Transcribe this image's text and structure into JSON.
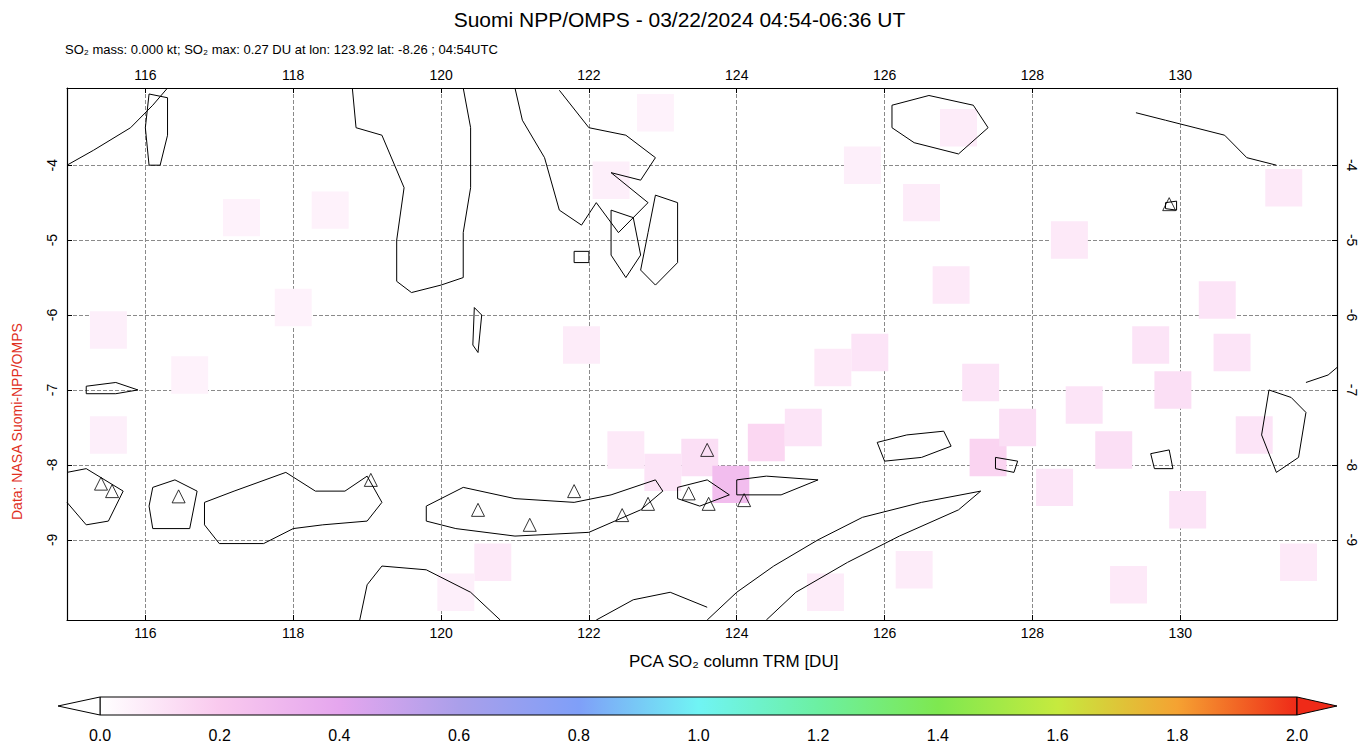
{
  "chart_data": {
    "type": "map",
    "title": "Suomi NPP/OMPS - 03/22/2024 04:54-06:36 UT",
    "subtitle": "SO₂ mass: 0.000 kt; SO₂ max: 0.27 DU at lon: 123.92 lat: -8.26 ; 04:54UTC",
    "source_label": "Data: NASA Suomi-NPP/OMPS",
    "xlim": [
      114.94,
      132.12
    ],
    "xticks": [
      116,
      118,
      120,
      122,
      124,
      126,
      128,
      130
    ],
    "ylim": [
      -10.07,
      -2.97
    ],
    "yticks": [
      -9,
      -8,
      -7,
      -6,
      -5,
      -4
    ],
    "grid": true,
    "colorbar": {
      "label": "PCA SO₂ column TRM [DU]",
      "range": [
        0,
        2
      ],
      "ticks": [
        {
          "value": 0,
          "label": "0.0"
        },
        0.2,
        0.4,
        0.6,
        0.8,
        {
          "value": 1,
          "label": "1.0"
        },
        1.2,
        1.4,
        1.6,
        1.8,
        {
          "value": 2,
          "label": "2.0"
        }
      ]
    },
    "so2_cells": {
      "cell_size": 0.5,
      "cells": [
        [
          115.5,
          -6.2,
          0.06
        ],
        [
          115.5,
          -7.6,
          0.06
        ],
        [
          116.6,
          -6.8,
          0.05
        ],
        [
          117.3,
          -4.7,
          0.05
        ],
        [
          118.0,
          -5.9,
          0.05
        ],
        [
          118.5,
          -4.6,
          0.05
        ],
        [
          121.9,
          -6.4,
          0.07
        ],
        [
          122.3,
          -4.2,
          0.06
        ],
        [
          122.9,
          -3.3,
          0.05
        ],
        [
          122.5,
          -7.8,
          0.08
        ],
        [
          123.0,
          -8.1,
          0.1
        ],
        [
          123.5,
          -7.9,
          0.12
        ],
        [
          123.92,
          -8.26,
          0.27
        ],
        [
          124.4,
          -7.7,
          0.15
        ],
        [
          124.9,
          -7.5,
          0.1
        ],
        [
          125.3,
          -6.7,
          0.08
        ],
        [
          125.8,
          -6.5,
          0.1
        ],
        [
          126.5,
          -4.5,
          0.07
        ],
        [
          126.9,
          -5.6,
          0.08
        ],
        [
          127.3,
          -6.9,
          0.1
        ],
        [
          127.4,
          -7.9,
          0.16
        ],
        [
          127.8,
          -7.5,
          0.12
        ],
        [
          128.3,
          -8.3,
          0.1
        ],
        [
          128.7,
          -7.2,
          0.1
        ],
        [
          129.1,
          -7.8,
          0.12
        ],
        [
          129.6,
          -6.4,
          0.1
        ],
        [
          129.9,
          -7.0,
          0.12
        ],
        [
          130.1,
          -8.6,
          0.1
        ],
        [
          130.5,
          -5.8,
          0.1
        ],
        [
          130.7,
          -6.5,
          0.1
        ],
        [
          131.0,
          -7.6,
          0.1
        ],
        [
          131.4,
          -4.3,
          0.08
        ],
        [
          131.6,
          -9.3,
          0.08
        ],
        [
          129.3,
          -9.6,
          0.08
        ],
        [
          126.4,
          -9.4,
          0.07
        ],
        [
          125.2,
          -9.7,
          0.07
        ],
        [
          120.7,
          -9.3,
          0.08
        ],
        [
          120.2,
          -9.7,
          0.06
        ],
        [
          128.5,
          -5.0,
          0.08
        ],
        [
          127.0,
          -3.5,
          0.07
        ],
        [
          125.7,
          -4.0,
          0.06
        ]
      ]
    },
    "volcanoes": {
      "marker": "triangle",
      "points": [
        [
          115.4,
          -8.25
        ],
        [
          115.55,
          -8.35
        ],
        [
          116.45,
          -8.42
        ],
        [
          119.05,
          -8.2
        ],
        [
          120.5,
          -8.6
        ],
        [
          121.2,
          -8.8
        ],
        [
          121.8,
          -8.35
        ],
        [
          122.45,
          -8.67
        ],
        [
          122.8,
          -8.52
        ],
        [
          123.35,
          -8.38
        ],
        [
          123.6,
          -7.8
        ],
        [
          123.62,
          -8.52
        ],
        [
          124.1,
          -8.47
        ],
        [
          129.85,
          -4.52
        ]
      ]
    },
    "coastlines": {
      "color": "#000000",
      "polygons": [
        [
          [
            114.94,
            -4.0
          ],
          [
            115.3,
            -3.8
          ],
          [
            115.8,
            -3.5
          ],
          [
            116.1,
            -3.2
          ],
          [
            116.3,
            -2.97
          ]
        ],
        [
          [
            116.05,
            -3.05
          ],
          [
            116.3,
            -3.1
          ],
          [
            116.3,
            -3.6
          ],
          [
            116.2,
            -4.0
          ],
          [
            116.05,
            -4.0
          ],
          [
            116.0,
            -3.5
          ],
          [
            116.05,
            -3.05
          ]
        ],
        [
          [
            118.8,
            -2.97
          ],
          [
            118.85,
            -3.5
          ],
          [
            119.2,
            -3.6
          ],
          [
            119.5,
            -4.3
          ],
          [
            119.4,
            -5.0
          ],
          [
            119.4,
            -5.55
          ],
          [
            119.6,
            -5.7
          ],
          [
            120.0,
            -5.6
          ],
          [
            120.3,
            -5.5
          ],
          [
            120.3,
            -4.9
          ],
          [
            120.4,
            -4.3
          ],
          [
            120.4,
            -3.5
          ],
          [
            120.3,
            -2.97
          ]
        ],
        [
          [
            120.45,
            -5.9
          ],
          [
            120.55,
            -6.0
          ],
          [
            120.5,
            -6.5
          ],
          [
            120.43,
            -6.4
          ],
          [
            120.45,
            -5.9
          ]
        ],
        [
          [
            121.0,
            -2.97
          ],
          [
            121.1,
            -3.4
          ],
          [
            121.4,
            -3.9
          ],
          [
            121.6,
            -4.6
          ],
          [
            121.9,
            -4.8
          ],
          [
            122.1,
            -4.5
          ],
          [
            122.4,
            -4.9
          ],
          [
            122.8,
            -4.5
          ],
          [
            122.3,
            -4.1
          ],
          [
            122.7,
            -4.2
          ],
          [
            122.9,
            -3.9
          ],
          [
            122.5,
            -3.6
          ],
          [
            122.0,
            -3.5
          ],
          [
            121.6,
            -3.0
          ]
        ],
        [
          [
            122.3,
            -4.6
          ],
          [
            122.6,
            -4.7
          ],
          [
            122.7,
            -5.2
          ],
          [
            122.5,
            -5.5
          ],
          [
            122.3,
            -5.2
          ],
          [
            122.3,
            -4.6
          ]
        ],
        [
          [
            122.9,
            -4.4
          ],
          [
            123.2,
            -4.5
          ],
          [
            123.2,
            -5.3
          ],
          [
            122.9,
            -5.6
          ],
          [
            122.7,
            -5.4
          ],
          [
            122.8,
            -4.9
          ],
          [
            122.9,
            -4.4
          ]
        ],
        [
          [
            121.8,
            -5.15
          ],
          [
            122.0,
            -5.15
          ],
          [
            122.0,
            -5.3
          ],
          [
            121.8,
            -5.3
          ],
          [
            121.8,
            -5.15
          ]
        ],
        [
          [
            126.1,
            -3.2
          ],
          [
            126.6,
            -3.07
          ],
          [
            127.2,
            -3.2
          ],
          [
            127.4,
            -3.5
          ],
          [
            127.0,
            -3.85
          ],
          [
            126.4,
            -3.7
          ],
          [
            126.1,
            -3.5
          ],
          [
            126.1,
            -3.2
          ]
        ],
        [
          [
            129.4,
            -3.3
          ],
          [
            129.8,
            -3.4
          ],
          [
            130.2,
            -3.5
          ],
          [
            130.6,
            -3.6
          ],
          [
            130.9,
            -3.9
          ],
          [
            131.3,
            -4.0
          ]
        ],
        [
          [
            129.8,
            -4.5
          ],
          [
            129.95,
            -4.48
          ],
          [
            129.95,
            -4.6
          ],
          [
            129.8,
            -4.58
          ],
          [
            129.8,
            -4.5
          ]
        ],
        [
          [
            114.94,
            -8.1
          ],
          [
            115.2,
            -8.05
          ],
          [
            115.7,
            -8.35
          ],
          [
            115.5,
            -8.75
          ],
          [
            115.2,
            -8.8
          ],
          [
            114.94,
            -8.5
          ]
        ],
        [
          [
            116.1,
            -8.3
          ],
          [
            116.4,
            -8.2
          ],
          [
            116.7,
            -8.35
          ],
          [
            116.6,
            -8.85
          ],
          [
            116.1,
            -8.85
          ],
          [
            116.05,
            -8.55
          ],
          [
            116.1,
            -8.3
          ]
        ],
        [
          [
            116.8,
            -8.5
          ],
          [
            117.2,
            -8.35
          ],
          [
            117.9,
            -8.1
          ],
          [
            118.3,
            -8.35
          ],
          [
            118.7,
            -8.35
          ],
          [
            119.0,
            -8.15
          ],
          [
            119.2,
            -8.5
          ],
          [
            119.0,
            -8.75
          ],
          [
            118.4,
            -8.8
          ],
          [
            118.0,
            -8.85
          ],
          [
            117.6,
            -9.05
          ],
          [
            117.0,
            -9.05
          ],
          [
            116.8,
            -8.8
          ],
          [
            116.8,
            -8.5
          ]
        ],
        [
          [
            119.8,
            -8.55
          ],
          [
            120.3,
            -8.3
          ],
          [
            121.0,
            -8.45
          ],
          [
            121.8,
            -8.5
          ],
          [
            122.3,
            -8.4
          ],
          [
            122.9,
            -8.2
          ],
          [
            123.0,
            -8.35
          ],
          [
            122.7,
            -8.6
          ],
          [
            122.0,
            -8.9
          ],
          [
            121.0,
            -8.95
          ],
          [
            120.2,
            -8.85
          ],
          [
            119.8,
            -8.75
          ],
          [
            119.8,
            -8.55
          ]
        ],
        [
          [
            123.2,
            -8.3
          ],
          [
            123.6,
            -8.2
          ],
          [
            123.9,
            -8.4
          ],
          [
            123.5,
            -8.55
          ],
          [
            123.2,
            -8.45
          ],
          [
            123.2,
            -8.3
          ]
        ],
        [
          [
            124.0,
            -8.2
          ],
          [
            124.4,
            -8.15
          ],
          [
            125.1,
            -8.2
          ],
          [
            124.6,
            -8.4
          ],
          [
            124.0,
            -8.4
          ],
          [
            124.0,
            -8.2
          ]
        ],
        [
          [
            125.9,
            -7.7
          ],
          [
            126.3,
            -7.6
          ],
          [
            126.8,
            -7.55
          ],
          [
            126.9,
            -7.75
          ],
          [
            126.5,
            -7.9
          ],
          [
            126.0,
            -7.95
          ],
          [
            125.9,
            -7.7
          ]
        ],
        [
          [
            123.6,
            -10.07
          ],
          [
            124.0,
            -9.7
          ],
          [
            124.5,
            -9.35
          ],
          [
            125.1,
            -9.0
          ],
          [
            125.7,
            -8.7
          ],
          [
            126.5,
            -8.5
          ],
          [
            127.3,
            -8.35
          ],
          [
            127.0,
            -8.6
          ],
          [
            126.2,
            -8.95
          ],
          [
            125.5,
            -9.3
          ],
          [
            124.8,
            -9.7
          ],
          [
            124.4,
            -10.07
          ]
        ],
        [
          [
            118.9,
            -10.07
          ],
          [
            119.0,
            -9.6
          ],
          [
            119.2,
            -9.35
          ],
          [
            119.8,
            -9.4
          ],
          [
            120.4,
            -9.7
          ],
          [
            120.8,
            -10.07
          ]
        ],
        [
          [
            122.1,
            -10.07
          ],
          [
            122.6,
            -9.8
          ],
          [
            123.1,
            -9.7
          ],
          [
            123.6,
            -9.9
          ]
        ],
        [
          [
            115.2,
            -6.95
          ],
          [
            115.6,
            -6.9
          ],
          [
            115.9,
            -7.0
          ],
          [
            115.6,
            -7.05
          ],
          [
            115.2,
            -7.05
          ],
          [
            115.2,
            -6.95
          ]
        ],
        [
          [
            131.2,
            -7.0
          ],
          [
            131.5,
            -7.1
          ],
          [
            131.7,
            -7.3
          ],
          [
            131.6,
            -7.9
          ],
          [
            131.3,
            -8.1
          ],
          [
            131.1,
            -7.6
          ],
          [
            131.2,
            -7.0
          ]
        ],
        [
          [
            131.7,
            -6.9
          ],
          [
            132.0,
            -6.8
          ],
          [
            132.12,
            -6.7
          ]
        ],
        [
          [
            129.6,
            -7.85
          ],
          [
            129.85,
            -7.8
          ],
          [
            129.9,
            -8.05
          ],
          [
            129.65,
            -8.05
          ],
          [
            129.6,
            -7.85
          ]
        ],
        [
          [
            127.5,
            -7.9
          ],
          [
            127.8,
            -7.95
          ],
          [
            127.75,
            -8.1
          ],
          [
            127.5,
            -8.05
          ],
          [
            127.5,
            -7.9
          ]
        ]
      ]
    }
  }
}
